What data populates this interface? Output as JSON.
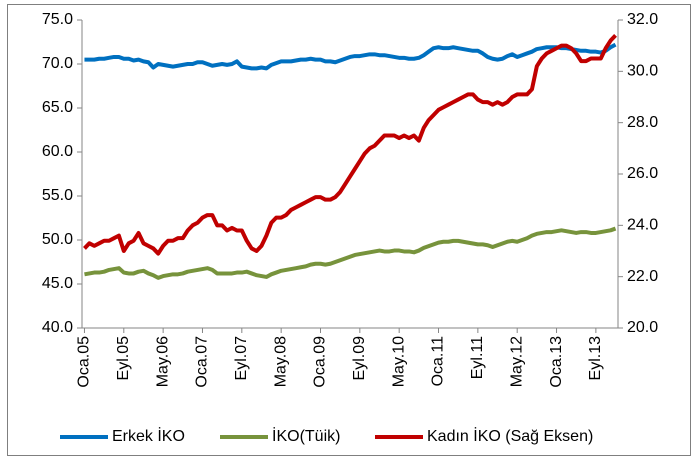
{
  "chart_data": {
    "type": "line",
    "categories": [
      "Oca.05",
      null,
      null,
      null,
      null,
      null,
      null,
      null,
      "Eyl.05",
      null,
      null,
      null,
      null,
      null,
      null,
      null,
      "May.06",
      null,
      null,
      null,
      null,
      null,
      null,
      null,
      "Oca.07",
      null,
      null,
      null,
      null,
      null,
      null,
      null,
      "Eyl.07",
      null,
      null,
      null,
      null,
      null,
      null,
      null,
      "May.08",
      null,
      null,
      null,
      null,
      null,
      null,
      null,
      "Oca.09",
      null,
      null,
      null,
      null,
      null,
      null,
      null,
      "Eyl.09",
      null,
      null,
      null,
      null,
      null,
      null,
      null,
      "May.10",
      null,
      null,
      null,
      null,
      null,
      null,
      null,
      "Oca.11",
      null,
      null,
      null,
      null,
      null,
      null,
      null,
      "Eyl.11",
      null,
      null,
      null,
      null,
      null,
      null,
      null,
      "May.12",
      null,
      null,
      null,
      null,
      null,
      null,
      null,
      "Oca.13",
      null,
      null,
      null,
      null,
      null,
      null,
      null,
      "Eyl.13",
      null,
      null,
      null,
      null
    ],
    "series": [
      {
        "name": "Erkek İKO",
        "color": "#0070c0",
        "axis": "y",
        "values": [
          70.5,
          70.5,
          70.5,
          70.6,
          70.6,
          70.7,
          70.8,
          70.8,
          70.6,
          70.6,
          70.4,
          70.5,
          70.3,
          70.2,
          69.6,
          70.0,
          69.9,
          69.8,
          69.7,
          69.8,
          69.9,
          70.0,
          70.0,
          70.2,
          70.2,
          70.0,
          69.8,
          69.9,
          70.0,
          69.9,
          70.0,
          70.3,
          69.7,
          69.6,
          69.5,
          69.5,
          69.6,
          69.5,
          69.9,
          70.1,
          70.3,
          70.3,
          70.3,
          70.4,
          70.5,
          70.5,
          70.6,
          70.5,
          70.5,
          70.3,
          70.3,
          70.2,
          70.4,
          70.6,
          70.8,
          70.9,
          70.9,
          71.0,
          71.1,
          71.1,
          71.0,
          71.0,
          70.9,
          70.8,
          70.7,
          70.7,
          70.6,
          70.6,
          70.7,
          71.0,
          71.4,
          71.8,
          71.9,
          71.8,
          71.8,
          71.9,
          71.8,
          71.7,
          71.6,
          71.5,
          71.5,
          71.2,
          70.8,
          70.6,
          70.5,
          70.6,
          70.9,
          71.1,
          70.8,
          71.0,
          71.2,
          71.4,
          71.7,
          71.8,
          71.9,
          71.9,
          71.9,
          71.8,
          71.8,
          71.7,
          71.6,
          71.5,
          71.5,
          71.4,
          71.4,
          71.3,
          71.5,
          71.9,
          72.2
        ]
      },
      {
        "name": "İKO(Tüik)",
        "color": "#77933c",
        "axis": "y",
        "values": [
          46.1,
          46.2,
          46.3,
          46.3,
          46.4,
          46.6,
          46.7,
          46.8,
          46.3,
          46.2,
          46.2,
          46.4,
          46.5,
          46.2,
          46.0,
          45.7,
          45.9,
          46.0,
          46.1,
          46.1,
          46.2,
          46.4,
          46.5,
          46.6,
          46.7,
          46.8,
          46.6,
          46.2,
          46.2,
          46.2,
          46.2,
          46.3,
          46.3,
          46.4,
          46.2,
          46.0,
          45.9,
          45.8,
          46.1,
          46.3,
          46.5,
          46.6,
          46.7,
          46.8,
          46.9,
          47.0,
          47.2,
          47.3,
          47.3,
          47.2,
          47.3,
          47.5,
          47.7,
          47.9,
          48.1,
          48.3,
          48.4,
          48.5,
          48.6,
          48.7,
          48.8,
          48.7,
          48.7,
          48.8,
          48.8,
          48.7,
          48.7,
          48.6,
          48.8,
          49.1,
          49.3,
          49.5,
          49.7,
          49.8,
          49.8,
          49.9,
          49.9,
          49.8,
          49.7,
          49.6,
          49.5,
          49.5,
          49.4,
          49.2,
          49.4,
          49.6,
          49.8,
          49.9,
          49.8,
          50.0,
          50.2,
          50.5,
          50.7,
          50.8,
          50.9,
          50.9,
          51.0,
          51.1,
          51.0,
          50.9,
          50.8,
          50.9,
          50.9,
          50.8,
          50.8,
          50.9,
          51.0,
          51.1,
          51.3
        ]
      },
      {
        "name": "Kadın İKO (Sağ Eksen)",
        "color": "#c00000",
        "axis": "y2",
        "values": [
          23.1,
          23.3,
          23.2,
          23.3,
          23.4,
          23.4,
          23.5,
          23.6,
          23.0,
          23.3,
          23.4,
          23.7,
          23.3,
          23.2,
          23.1,
          22.9,
          23.2,
          23.4,
          23.4,
          23.5,
          23.5,
          23.8,
          24.0,
          24.1,
          24.3,
          24.4,
          24.4,
          24.0,
          24.0,
          23.8,
          23.9,
          23.8,
          23.8,
          23.4,
          23.1,
          23.0,
          23.2,
          23.6,
          24.1,
          24.3,
          24.3,
          24.4,
          24.6,
          24.7,
          24.8,
          24.9,
          25.0,
          25.1,
          25.1,
          25.0,
          25.0,
          25.1,
          25.3,
          25.6,
          25.9,
          26.2,
          26.5,
          26.8,
          27.0,
          27.1,
          27.3,
          27.5,
          27.5,
          27.5,
          27.4,
          27.5,
          27.4,
          27.5,
          27.3,
          27.8,
          28.1,
          28.3,
          28.5,
          28.6,
          28.7,
          28.8,
          28.9,
          29.0,
          29.1,
          29.1,
          28.9,
          28.8,
          28.8,
          28.7,
          28.8,
          28.7,
          28.8,
          29.0,
          29.1,
          29.1,
          29.1,
          29.3,
          30.2,
          30.5,
          30.7,
          30.8,
          30.9,
          31.0,
          31.0,
          30.9,
          30.7,
          30.4,
          30.4,
          30.5,
          30.5,
          30.5,
          30.9,
          31.2,
          31.4
        ]
      }
    ],
    "ylim": [
      40,
      75
    ],
    "yticks": [
      {
        "value": 40,
        "label": "40.0"
      },
      {
        "value": 45,
        "label": "45.0"
      },
      {
        "value": 50,
        "label": "50.0"
      },
      {
        "value": 55,
        "label": "55.0"
      },
      {
        "value": 60,
        "label": "60.0"
      },
      {
        "value": 65,
        "label": "65.0"
      },
      {
        "value": 70,
        "label": "70.0"
      },
      {
        "value": 75,
        "label": "75.0"
      }
    ],
    "y2lim": [
      20,
      32
    ],
    "y2ticks": [
      {
        "value": 20,
        "label": "20.0"
      },
      {
        "value": 22,
        "label": "22.0"
      },
      {
        "value": 24,
        "label": "24.0"
      },
      {
        "value": 26,
        "label": "26.0"
      },
      {
        "value": 28,
        "label": "28.0"
      },
      {
        "value": 30,
        "label": "30.0"
      },
      {
        "value": 32,
        "label": "32.0"
      }
    ],
    "grid": false,
    "legend": "bottom"
  }
}
